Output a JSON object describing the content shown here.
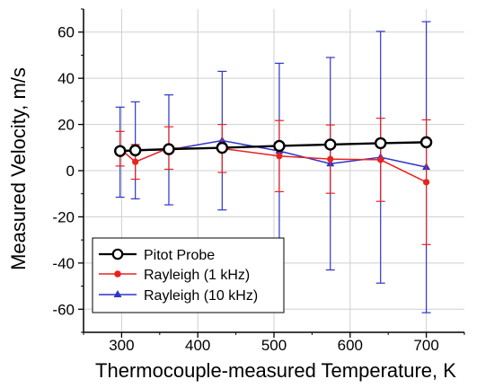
{
  "chart_data": {
    "type": "line",
    "xlabel": "Thermocouple-measured Temperature, K",
    "ylabel": "Measured Velocity, m/s",
    "xlim": [
      250,
      750
    ],
    "ylim": [
      -70,
      70
    ],
    "x_ticks": [
      300,
      400,
      500,
      600,
      700
    ],
    "y_ticks": [
      -60,
      -40,
      -20,
      0,
      20,
      40,
      60
    ],
    "grid": true,
    "legend_position": "bottom-left",
    "series": [
      {
        "name": "Pitot Probe",
        "color": "#000000",
        "marker": "open-circle",
        "points": [
          {
            "x": 298,
            "y": 8.5,
            "err": 0
          },
          {
            "x": 318,
            "y": 8.8,
            "err": 0
          },
          {
            "x": 362,
            "y": 9.3,
            "err": 0
          },
          {
            "x": 432,
            "y": 9.9,
            "err": 0
          },
          {
            "x": 507,
            "y": 10.7,
            "err": 0
          },
          {
            "x": 574,
            "y": 11.3,
            "err": 0
          },
          {
            "x": 640,
            "y": 11.9,
            "err": 0
          },
          {
            "x": 700,
            "y": 12.3,
            "err": 0
          }
        ]
      },
      {
        "name": "Rayleigh (1 kHz)",
        "color": "#e8231f",
        "marker": "filled-circle",
        "points": [
          {
            "x": 298,
            "y": 9.5,
            "err": 7.5
          },
          {
            "x": 318,
            "y": 3.8,
            "err": 7.5
          },
          {
            "x": 362,
            "y": 9.8,
            "err": 9.2
          },
          {
            "x": 432,
            "y": 9.6,
            "err": 10.4
          },
          {
            "x": 507,
            "y": 6.3,
            "err": 15.4
          },
          {
            "x": 574,
            "y": 5.0,
            "err": 14.8
          },
          {
            "x": 640,
            "y": 4.7,
            "err": 18.0
          },
          {
            "x": 700,
            "y": -5.0,
            "err": 27.0
          }
        ]
      },
      {
        "name": "Rayleigh (10 kHz)",
        "color": "#2e35c8",
        "marker": "filled-triangle",
        "points": [
          {
            "x": 298,
            "y": 8.0,
            "err": 19.5
          },
          {
            "x": 318,
            "y": 8.8,
            "err": 21.0
          },
          {
            "x": 362,
            "y": 9.0,
            "err": 23.8
          },
          {
            "x": 432,
            "y": 13.0,
            "err": 30.0
          },
          {
            "x": 507,
            "y": 8.5,
            "err": 38.0
          },
          {
            "x": 574,
            "y": 3.0,
            "err": 46.0
          },
          {
            "x": 640,
            "y": 5.8,
            "err": 54.5
          },
          {
            "x": 700,
            "y": 1.5,
            "err": 63.0
          }
        ]
      }
    ]
  }
}
